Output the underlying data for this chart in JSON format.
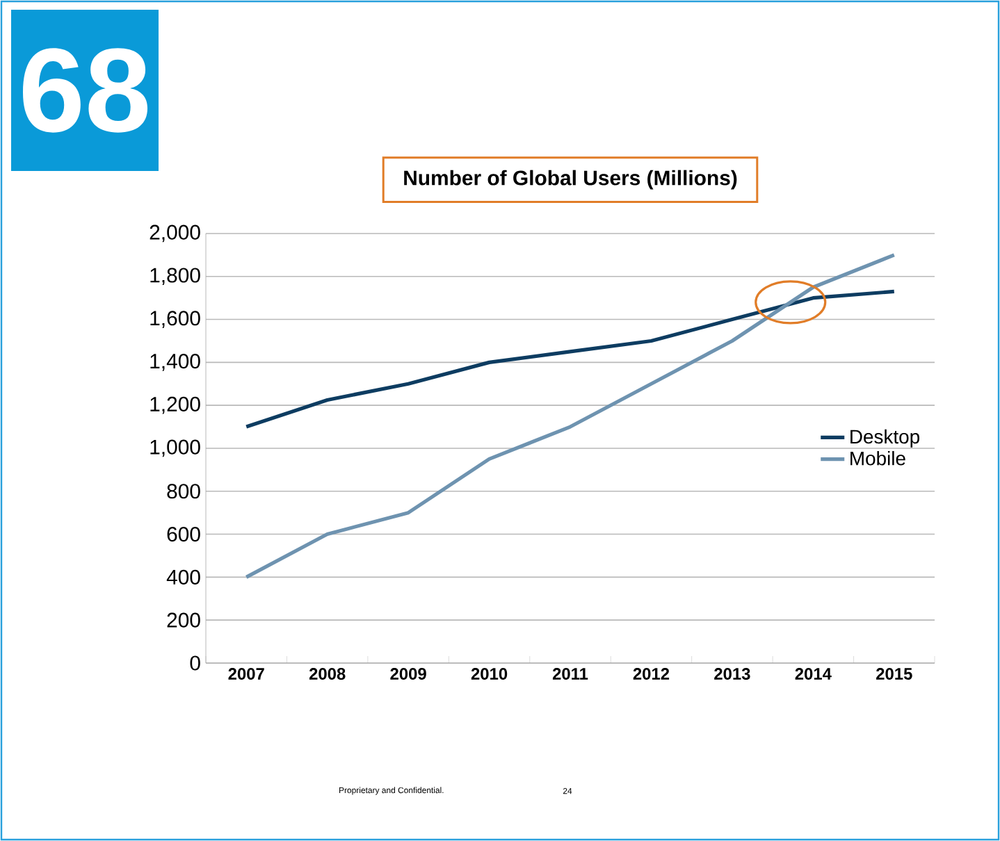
{
  "chart_data": {
    "type": "line",
    "title": "Number of Global Users (Millions)",
    "categories": [
      "2007",
      "2008",
      "2009",
      "2010",
      "2011",
      "2012",
      "2013",
      "2014",
      "2015"
    ],
    "series": [
      {
        "name": "Desktop",
        "color": "#0d3c61",
        "values": [
          1100,
          1225,
          1300,
          1400,
          1450,
          1500,
          1600,
          1700,
          1730
        ]
      },
      {
        "name": "Mobile",
        "color": "#6e93b0",
        "values": [
          400,
          600,
          700,
          950,
          1100,
          1300,
          1500,
          1750,
          1900
        ]
      }
    ],
    "ylim": [
      0,
      2000
    ],
    "yticks": [
      0,
      200,
      400,
      600,
      800,
      {
        "value": 1000,
        "label": "1,000"
      },
      {
        "value": 1200,
        "label": "1,200"
      },
      {
        "value": 1400,
        "label": "1,400"
      },
      {
        "value": 1600,
        "label": "1,600"
      },
      {
        "value": 1800,
        "label": "1,800"
      },
      {
        "value": 2000,
        "label": "2,000"
      }
    ],
    "grid": "y",
    "legend": "right",
    "marker": "none",
    "line_style": "solid",
    "annotations": [
      "68",
      "Proprietary and Confidential.",
      "24"
    ]
  }
}
